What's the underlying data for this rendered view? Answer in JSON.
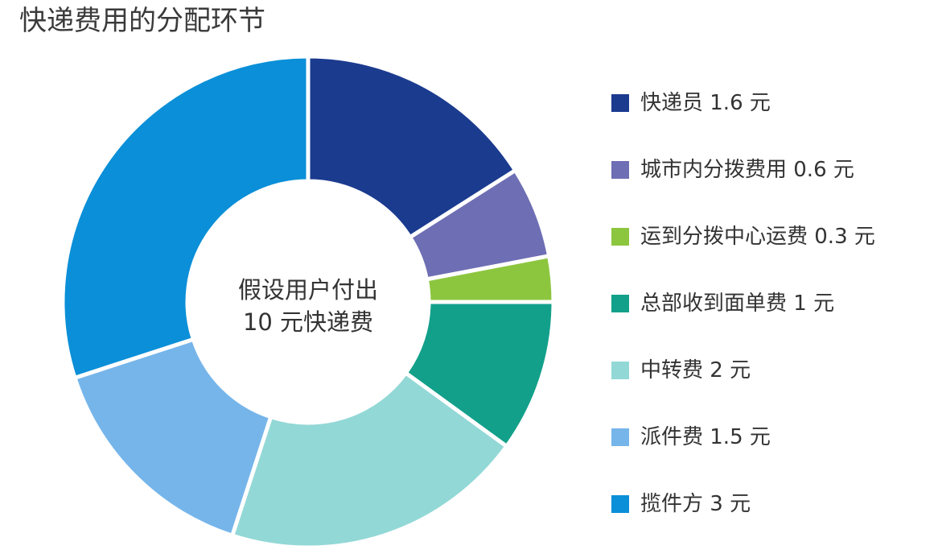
{
  "chart_data": {
    "type": "pie",
    "variant": "donut",
    "title": "快递费用的分配环节",
    "center_text": [
      "假设用户付出",
      "10 元快递费"
    ],
    "legend_position": "right",
    "total": 10,
    "unit": "元",
    "slices": [
      {
        "label": "快递员 1.6 元",
        "value": 1.6,
        "color": "#1b3b8f"
      },
      {
        "label": "城市内分拨费用 0.6 元",
        "value": 0.6,
        "color": "#6e6eb4"
      },
      {
        "label": "运到分拨中心运费 0.3 元",
        "value": 0.3,
        "color": "#8cc63f"
      },
      {
        "label": "总部收到面单费 1 元",
        "value": 1,
        "color": "#12a08a"
      },
      {
        "label": "中转费 2 元",
        "value": 2,
        "color": "#92d8d6"
      },
      {
        "label": "派件费 1.5 元",
        "value": 1.5,
        "color": "#76b5ea"
      },
      {
        "label": "揽件方 3 元",
        "value": 3,
        "color": "#0a8fd8"
      }
    ]
  }
}
